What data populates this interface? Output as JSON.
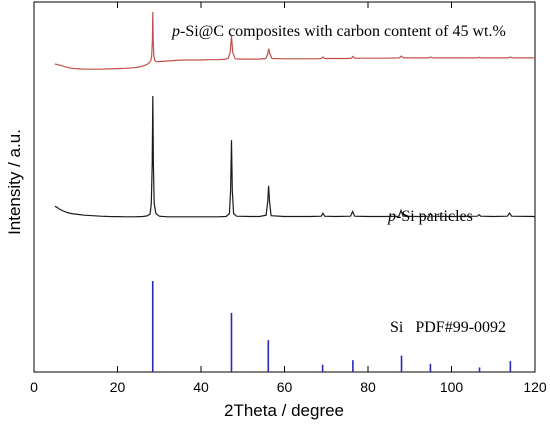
{
  "chart_data": {
    "type": "line",
    "xlabel": "2Theta / degree",
    "ylabel": "Intensity / a.u.",
    "xlim": [
      0,
      120
    ],
    "xticks": [
      0,
      20,
      40,
      60,
      80,
      100,
      120
    ],
    "y_tick_labels": false,
    "grid": false,
    "series": [
      {
        "key": "composite",
        "label_prefix": "p",
        "label_rest": "-Si@C composites with carbon content of 45 wt.%",
        "color": "#c0504d",
        "points": [
          [
            5,
            62
          ],
          [
            6,
            59
          ],
          [
            7,
            55
          ],
          [
            8,
            51
          ],
          [
            9,
            48
          ],
          [
            10,
            47
          ],
          [
            11,
            46
          ],
          [
            12,
            45
          ],
          [
            14,
            45
          ],
          [
            16,
            45
          ],
          [
            18,
            46
          ],
          [
            20,
            47
          ],
          [
            22,
            48
          ],
          [
            24,
            50
          ],
          [
            25,
            52
          ],
          [
            26,
            55
          ],
          [
            27,
            60
          ],
          [
            27.6,
            66
          ],
          [
            28.0,
            74
          ],
          [
            28.2,
            90
          ],
          [
            28.35,
            140
          ],
          [
            28.45,
            232
          ],
          [
            28.55,
            140
          ],
          [
            28.7,
            90
          ],
          [
            28.9,
            74
          ],
          [
            29.3,
            70
          ],
          [
            30,
            70
          ],
          [
            32,
            72
          ],
          [
            34,
            74
          ],
          [
            36,
            75
          ],
          [
            38,
            75
          ],
          [
            40,
            75
          ],
          [
            42,
            76
          ],
          [
            44,
            76
          ],
          [
            45.5,
            77
          ],
          [
            46.5,
            80
          ],
          [
            47.0,
            100
          ],
          [
            47.3,
            154
          ],
          [
            47.6,
            100
          ],
          [
            48.2,
            79
          ],
          [
            50,
            78
          ],
          [
            52,
            78
          ],
          [
            54,
            78
          ],
          [
            55.5,
            80
          ],
          [
            56.0,
            95
          ],
          [
            56.2,
            112
          ],
          [
            56.5,
            95
          ],
          [
            57,
            80
          ],
          [
            60,
            79
          ],
          [
            64,
            79
          ],
          [
            68,
            79
          ],
          [
            68.8,
            80
          ],
          [
            69.2,
            85
          ],
          [
            69.6,
            80
          ],
          [
            72,
            80
          ],
          [
            75,
            80
          ],
          [
            76.0,
            81
          ],
          [
            76.4,
            87
          ],
          [
            76.8,
            81
          ],
          [
            80,
            81
          ],
          [
            84,
            81
          ],
          [
            87.5,
            82
          ],
          [
            88.0,
            88
          ],
          [
            88.5,
            82
          ],
          [
            92,
            82
          ],
          [
            94.5,
            82
          ],
          [
            95.0,
            85
          ],
          [
            95.5,
            82
          ],
          [
            100,
            82
          ],
          [
            106.3,
            82
          ],
          [
            106.7,
            84
          ],
          [
            107.1,
            82
          ],
          [
            110,
            82
          ],
          [
            113.6,
            82
          ],
          [
            114.1,
            85
          ],
          [
            114.6,
            82
          ],
          [
            120,
            82
          ]
        ]
      },
      {
        "key": "psi",
        "label_prefix": "p",
        "label_rest": "-Si particles",
        "color": "#1a1a1a",
        "points": [
          [
            5,
            70
          ],
          [
            5.5,
            68
          ],
          [
            6,
            65
          ],
          [
            7,
            61
          ],
          [
            8,
            58
          ],
          [
            9,
            56
          ],
          [
            10,
            55
          ],
          [
            12,
            53
          ],
          [
            14,
            52
          ],
          [
            16,
            51
          ],
          [
            18,
            50.5
          ],
          [
            20,
            50.2
          ],
          [
            22,
            50
          ],
          [
            24,
            50
          ],
          [
            26,
            50.5
          ],
          [
            27,
            51.5
          ],
          [
            27.8,
            55
          ],
          [
            28.1,
            75
          ],
          [
            28.3,
            150
          ],
          [
            28.45,
            280
          ],
          [
            28.6,
            150
          ],
          [
            28.8,
            75
          ],
          [
            29.2,
            56
          ],
          [
            30,
            51
          ],
          [
            32,
            50
          ],
          [
            36,
            50
          ],
          [
            40,
            50
          ],
          [
            44,
            50
          ],
          [
            46,
            50.5
          ],
          [
            46.8,
            56
          ],
          [
            47.1,
            100
          ],
          [
            47.3,
            196
          ],
          [
            47.5,
            100
          ],
          [
            47.8,
            56
          ],
          [
            48.5,
            51
          ],
          [
            52,
            50.5
          ],
          [
            54,
            50.5
          ],
          [
            55.6,
            53
          ],
          [
            56.0,
            80
          ],
          [
            56.2,
            109
          ],
          [
            56.4,
            80
          ],
          [
            56.8,
            52
          ],
          [
            60,
            50.5
          ],
          [
            66,
            50.5
          ],
          [
            68.8,
            51
          ],
          [
            69.2,
            57
          ],
          [
            69.6,
            51
          ],
          [
            72,
            50.5
          ],
          [
            75.8,
            51
          ],
          [
            76.3,
            60
          ],
          [
            76.8,
            51
          ],
          [
            80,
            50.5
          ],
          [
            84,
            50.5
          ],
          [
            87.4,
            51
          ],
          [
            87.9,
            62
          ],
          [
            88.4,
            51
          ],
          [
            92,
            50.5
          ],
          [
            94.6,
            51
          ],
          [
            95.0,
            56
          ],
          [
            95.4,
            51
          ],
          [
            100,
            50.5
          ],
          [
            106.2,
            51
          ],
          [
            106.6,
            54
          ],
          [
            107.0,
            51
          ],
          [
            110,
            50.5
          ],
          [
            113.4,
            51
          ],
          [
            113.9,
            57
          ],
          [
            114.4,
            51
          ],
          [
            120,
            50.5
          ]
        ]
      }
    ],
    "reference": {
      "label": "Si   PDF#99-0092",
      "color": "#2a2ab8",
      "peaks": [
        {
          "x": 28.44,
          "height": 100
        },
        {
          "x": 47.3,
          "height": 65
        },
        {
          "x": 56.12,
          "height": 35
        },
        {
          "x": 69.13,
          "height": 8
        },
        {
          "x": 76.38,
          "height": 13
        },
        {
          "x": 88.03,
          "height": 18
        },
        {
          "x": 94.95,
          "height": 9
        },
        {
          "x": 106.71,
          "height": 5
        },
        {
          "x": 114.1,
          "height": 12
        }
      ]
    }
  }
}
